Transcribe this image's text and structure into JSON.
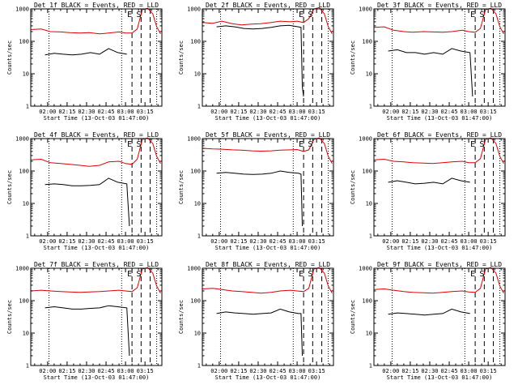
{
  "colors": {
    "background": "#ffffff",
    "axis": "#000000",
    "events": "#000000",
    "lld": "#dd0000"
  },
  "figure": {
    "rows": 3,
    "cols": 3
  },
  "chart_data": [
    {
      "type": "line",
      "panel": 1,
      "title": "Det 1f BLACK = Events, RED = LLD",
      "xlabel": "Start Time (13-Oct-03 01:47:00)",
      "ylabel": "Counts/sec",
      "y_scale": "log",
      "ylim": [
        1,
        1000
      ],
      "grid": false,
      "y_ticks": [
        "1",
        "10",
        "100",
        "1000"
      ],
      "x_ticks": [
        "02:00",
        "02:15",
        "02:30",
        "02:45",
        "03:00",
        "03:15"
      ],
      "xlim": [
        "01:47",
        "03:28"
      ],
      "dotted_vlines": [
        "02:01",
        "02:57",
        "03:24"
      ],
      "dashed_vlines": [
        "03:05",
        "03:12",
        "03:19"
      ],
      "flare_markers": [
        "E",
        "S"
      ],
      "series": [
        {
          "role": "events",
          "x": [
            "01:58",
            "02:05",
            "02:12",
            "02:19",
            "02:26",
            "02:33",
            "02:40",
            "02:47",
            "02:54",
            "03:01"
          ],
          "values": [
            38,
            43,
            40,
            38,
            40,
            45,
            40,
            60,
            45,
            40
          ]
        },
        {
          "role": "lld",
          "x": [
            "01:47",
            "01:55",
            "02:02",
            "02:10",
            "02:17",
            "02:25",
            "02:32",
            "02:40",
            "02:47",
            "02:55",
            "03:00",
            "03:05",
            "03:09",
            "03:13",
            "03:17",
            "03:21",
            "03:24",
            "03:27"
          ],
          "values": [
            230,
            240,
            200,
            195,
            185,
            180,
            185,
            170,
            180,
            195,
            180,
            180,
            240,
            950,
            1050,
            700,
            280,
            170
          ]
        }
      ]
    },
    {
      "type": "line",
      "panel": 2,
      "title": "Det 2f BLACK = Events, RED = LLD",
      "xlabel": "Start Time (13-Oct-03 01:47:00)",
      "ylabel": "Counts/sec",
      "y_scale": "log",
      "ylim": [
        1,
        1000
      ],
      "grid": false,
      "y_ticks": [
        "1",
        "10",
        "100",
        "1000"
      ],
      "x_ticks": [
        "02:00",
        "02:15",
        "02:30",
        "02:45",
        "03:00",
        "03:15"
      ],
      "xlim": [
        "01:47",
        "03:28"
      ],
      "dotted_vlines": [
        "02:01",
        "02:57",
        "03:24"
      ],
      "dashed_vlines": [
        "03:05",
        "03:12",
        "03:19"
      ],
      "flare_markers": [
        "E",
        "S"
      ],
      "series": [
        {
          "role": "events",
          "x": [
            "01:58",
            "02:05",
            "02:12",
            "02:19",
            "02:26",
            "02:33",
            "02:40",
            "02:47",
            "02:54",
            "03:01",
            "03:03",
            "03:04",
            "03:05"
          ],
          "values": [
            280,
            300,
            280,
            250,
            240,
            250,
            270,
            300,
            310,
            280,
            270,
            4,
            2
          ]
        },
        {
          "role": "lld",
          "x": [
            "01:47",
            "01:55",
            "02:02",
            "02:10",
            "02:17",
            "02:25",
            "02:32",
            "02:40",
            "02:47",
            "02:55",
            "03:00",
            "03:05",
            "03:09",
            "03:13",
            "03:17",
            "03:21",
            "03:24",
            "03:27"
          ],
          "values": [
            380,
            360,
            420,
            350,
            320,
            340,
            350,
            380,
            420,
            400,
            420,
            380,
            500,
            1000,
            1100,
            700,
            280,
            170
          ]
        }
      ]
    },
    {
      "type": "line",
      "panel": 3,
      "title": "Det 3f BLACK = Events, RED = LLD",
      "xlabel": "Start Time (13-Oct-03 01:47:00)",
      "ylabel": "Counts/sec",
      "y_scale": "log",
      "ylim": [
        1,
        1000
      ],
      "grid": false,
      "y_ticks": [
        "1",
        "10",
        "100",
        "1000"
      ],
      "x_ticks": [
        "02:00",
        "02:15",
        "02:30",
        "02:45",
        "03:00",
        "03:15"
      ],
      "xlim": [
        "01:47",
        "03:28"
      ],
      "dotted_vlines": [
        "02:01",
        "02:57",
        "03:24"
      ],
      "dashed_vlines": [
        "03:05",
        "03:12",
        "03:19"
      ],
      "flare_markers": [
        "E",
        "S"
      ],
      "series": [
        {
          "role": "events",
          "x": [
            "01:58",
            "02:05",
            "02:12",
            "02:19",
            "02:26",
            "02:33",
            "02:40",
            "02:47",
            "02:54",
            "03:01",
            "03:03"
          ],
          "values": [
            50,
            55,
            45,
            45,
            40,
            45,
            40,
            60,
            50,
            45,
            2
          ]
        },
        {
          "role": "lld",
          "x": [
            "01:47",
            "01:55",
            "02:02",
            "02:10",
            "02:17",
            "02:25",
            "02:32",
            "02:40",
            "02:47",
            "02:55",
            "03:00",
            "03:05",
            "03:09",
            "03:13",
            "03:17",
            "03:21",
            "03:24",
            "03:27"
          ],
          "values": [
            270,
            280,
            220,
            200,
            190,
            200,
            195,
            190,
            200,
            220,
            200,
            190,
            250,
            950,
            1050,
            700,
            280,
            170
          ]
        }
      ]
    },
    {
      "type": "line",
      "panel": 4,
      "title": "Det 4f BLACK = Events, RED = LLD",
      "xlabel": "Start Time (13-Oct-03 01:47:00)",
      "ylabel": "Counts/sec",
      "y_scale": "log",
      "ylim": [
        1,
        1000
      ],
      "grid": false,
      "y_ticks": [
        "1",
        "10",
        "100",
        "1000"
      ],
      "x_ticks": [
        "02:00",
        "02:15",
        "02:30",
        "02:45",
        "03:00",
        "03:15"
      ],
      "xlim": [
        "01:47",
        "03:28"
      ],
      "dotted_vlines": [
        "02:01",
        "02:57",
        "03:24"
      ],
      "dashed_vlines": [
        "03:05",
        "03:12",
        "03:19"
      ],
      "flare_markers": [
        "E",
        "S"
      ],
      "series": [
        {
          "role": "events",
          "x": [
            "01:58",
            "02:05",
            "02:12",
            "02:19",
            "02:26",
            "02:33",
            "02:40",
            "02:47",
            "02:54",
            "03:01",
            "03:03"
          ],
          "values": [
            38,
            40,
            38,
            35,
            35,
            36,
            38,
            60,
            45,
            40,
            2
          ]
        },
        {
          "role": "lld",
          "x": [
            "01:47",
            "01:55",
            "02:02",
            "02:10",
            "02:17",
            "02:25",
            "02:32",
            "02:40",
            "02:47",
            "02:55",
            "03:00",
            "03:05",
            "03:09",
            "03:13",
            "03:17",
            "03:21",
            "03:24",
            "03:27"
          ],
          "values": [
            220,
            230,
            180,
            170,
            160,
            150,
            140,
            150,
            190,
            200,
            170,
            160,
            230,
            950,
            1050,
            700,
            280,
            170
          ]
        }
      ]
    },
    {
      "type": "line",
      "panel": 5,
      "title": "Det 5f BLACK = Events, RED = LLD",
      "xlabel": "Start Time (13-Oct-03 01:47:00)",
      "ylabel": "Counts/sec",
      "y_scale": "log",
      "ylim": [
        1,
        1000
      ],
      "grid": false,
      "y_ticks": [
        "1",
        "10",
        "100",
        "1000"
      ],
      "x_ticks": [
        "02:00",
        "02:15",
        "02:30",
        "02:45",
        "03:00",
        "03:15"
      ],
      "xlim": [
        "01:47",
        "03:28"
      ],
      "dotted_vlines": [
        "02:01",
        "02:57",
        "03:24"
      ],
      "dashed_vlines": [
        "03:05",
        "03:12",
        "03:19"
      ],
      "flare_markers": [
        "E",
        "S"
      ],
      "series": [
        {
          "role": "events",
          "x": [
            "01:58",
            "02:05",
            "02:12",
            "02:19",
            "02:26",
            "02:33",
            "02:40",
            "02:47",
            "02:54",
            "03:01",
            "03:03",
            "03:04"
          ],
          "values": [
            85,
            90,
            85,
            80,
            78,
            80,
            85,
            100,
            90,
            85,
            80,
            2
          ]
        },
        {
          "role": "lld",
          "x": [
            "01:47",
            "01:55",
            "02:02",
            "02:10",
            "02:17",
            "02:25",
            "02:32",
            "02:40",
            "02:47",
            "02:55",
            "03:00",
            "03:05",
            "03:09",
            "03:13",
            "03:17",
            "03:21",
            "03:24",
            "03:27"
          ],
          "values": [
            500,
            480,
            470,
            450,
            440,
            420,
            410,
            420,
            440,
            450,
            460,
            400,
            450,
            950,
            1050,
            700,
            280,
            170
          ]
        }
      ]
    },
    {
      "type": "line",
      "panel": 6,
      "title": "Det 6f BLACK = Events, RED = LLD",
      "xlabel": "Start Time (13-Oct-03 01:47:00)",
      "ylabel": "Counts/sec",
      "y_scale": "log",
      "ylim": [
        1,
        1000
      ],
      "grid": false,
      "y_ticks": [
        "1",
        "10",
        "100",
        "1000"
      ],
      "x_ticks": [
        "02:00",
        "02:15",
        "02:30",
        "02:45",
        "03:00",
        "03:15"
      ],
      "xlim": [
        "01:47",
        "03:28"
      ],
      "dotted_vlines": [
        "02:01",
        "02:57",
        "03:24"
      ],
      "dashed_vlines": [
        "03:05",
        "03:12",
        "03:19"
      ],
      "flare_markers": [
        "E",
        "S"
      ],
      "series": [
        {
          "role": "events",
          "x": [
            "01:58",
            "02:05",
            "02:12",
            "02:19",
            "02:26",
            "02:33",
            "02:40",
            "02:47",
            "02:54",
            "03:01"
          ],
          "values": [
            45,
            50,
            45,
            40,
            42,
            45,
            40,
            60,
            50,
            45
          ]
        },
        {
          "role": "lld",
          "x": [
            "01:47",
            "01:55",
            "02:02",
            "02:10",
            "02:17",
            "02:25",
            "02:32",
            "02:40",
            "02:47",
            "02:55",
            "03:00",
            "03:05",
            "03:09",
            "03:13",
            "03:17",
            "03:21",
            "03:24",
            "03:27"
          ],
          "values": [
            220,
            230,
            200,
            190,
            180,
            175,
            170,
            180,
            190,
            200,
            180,
            180,
            240,
            950,
            1050,
            700,
            280,
            170
          ]
        }
      ]
    },
    {
      "type": "line",
      "panel": 7,
      "title": "Det 7f BLACK = Events, RED = LLD",
      "xlabel": "Start Time (13-Oct-03 01:47:00)",
      "ylabel": "Counts/sec",
      "y_scale": "log",
      "ylim": [
        1,
        1000
      ],
      "grid": false,
      "y_ticks": [
        "1",
        "10",
        "100",
        "1000"
      ],
      "x_ticks": [
        "02:00",
        "02:15",
        "02:30",
        "02:45",
        "03:00",
        "03:15"
      ],
      "xlim": [
        "01:47",
        "03:28"
      ],
      "dotted_vlines": [
        "02:01",
        "02:57",
        "03:24"
      ],
      "dashed_vlines": [
        "03:05",
        "03:12",
        "03:19"
      ],
      "flare_markers": [
        "E",
        "S"
      ],
      "series": [
        {
          "role": "events",
          "x": [
            "01:58",
            "02:05",
            "02:12",
            "02:19",
            "02:26",
            "02:33",
            "02:40",
            "02:47",
            "02:54",
            "03:01",
            "03:03"
          ],
          "values": [
            60,
            65,
            60,
            55,
            55,
            58,
            60,
            70,
            65,
            60,
            2
          ]
        },
        {
          "role": "lld",
          "x": [
            "01:47",
            "01:55",
            "02:02",
            "02:10",
            "02:17",
            "02:25",
            "02:32",
            "02:40",
            "02:47",
            "02:55",
            "03:00",
            "03:05",
            "03:09",
            "03:13",
            "03:17",
            "03:21",
            "03:24",
            "03:27"
          ],
          "values": [
            200,
            210,
            200,
            190,
            185,
            180,
            185,
            190,
            200,
            210,
            200,
            190,
            250,
            950,
            1050,
            700,
            280,
            170
          ]
        }
      ]
    },
    {
      "type": "line",
      "panel": 8,
      "title": "Det 8f BLACK = Events, RED = LLD",
      "xlabel": "Start Time (13-Oct-03 01:47:00)",
      "ylabel": "Counts/sec",
      "y_scale": "log",
      "ylim": [
        1,
        1000
      ],
      "grid": false,
      "y_ticks": [
        "1",
        "10",
        "100",
        "1000"
      ],
      "x_ticks": [
        "02:00",
        "02:15",
        "02:30",
        "02:45",
        "03:00",
        "03:15"
      ],
      "xlim": [
        "01:47",
        "03:28"
      ],
      "dotted_vlines": [
        "02:01",
        "02:57",
        "03:24"
      ],
      "dashed_vlines": [
        "03:05",
        "03:12",
        "03:19"
      ],
      "flare_markers": [
        "E",
        "S"
      ],
      "series": [
        {
          "role": "events",
          "x": [
            "01:58",
            "02:05",
            "02:12",
            "02:19",
            "02:26",
            "02:33",
            "02:40",
            "02:47",
            "02:54",
            "03:01",
            "03:03",
            "03:04"
          ],
          "values": [
            40,
            45,
            42,
            40,
            38,
            40,
            42,
            55,
            45,
            40,
            40,
            2
          ]
        },
        {
          "role": "lld",
          "x": [
            "01:47",
            "01:55",
            "02:02",
            "02:10",
            "02:17",
            "02:25",
            "02:32",
            "02:40",
            "02:47",
            "02:55",
            "03:00",
            "03:05",
            "03:09",
            "03:13",
            "03:17",
            "03:21",
            "03:24",
            "03:27"
          ],
          "values": [
            230,
            240,
            220,
            200,
            190,
            180,
            170,
            180,
            200,
            210,
            200,
            190,
            240,
            950,
            1050,
            700,
            280,
            170
          ]
        }
      ]
    },
    {
      "type": "line",
      "panel": 9,
      "title": "Det 9f BLACK = Events, RED = LLD",
      "xlabel": "Start Time (13-Oct-03 01:47:00)",
      "ylabel": "Counts/sec",
      "y_scale": "log",
      "ylim": [
        1,
        1000
      ],
      "grid": false,
      "y_ticks": [
        "1",
        "10",
        "100",
        "1000"
      ],
      "x_ticks": [
        "02:00",
        "02:15",
        "02:30",
        "02:45",
        "03:00",
        "03:15"
      ],
      "xlim": [
        "01:47",
        "03:28"
      ],
      "dotted_vlines": [
        "02:01",
        "02:57",
        "03:24"
      ],
      "dashed_vlines": [
        "03:05",
        "03:12",
        "03:19"
      ],
      "flare_markers": [
        "E",
        "S"
      ],
      "series": [
        {
          "role": "events",
          "x": [
            "01:58",
            "02:05",
            "02:12",
            "02:19",
            "02:26",
            "02:33",
            "02:40",
            "02:47",
            "02:54",
            "03:01"
          ],
          "values": [
            38,
            42,
            40,
            38,
            36,
            38,
            40,
            55,
            45,
            40
          ]
        },
        {
          "role": "lld",
          "x": [
            "01:47",
            "01:55",
            "02:02",
            "02:10",
            "02:17",
            "02:25",
            "02:32",
            "02:40",
            "02:47",
            "02:55",
            "03:00",
            "03:05",
            "03:09",
            "03:13",
            "03:17",
            "03:21",
            "03:24",
            "03:27"
          ],
          "values": [
            220,
            230,
            210,
            190,
            180,
            175,
            170,
            180,
            190,
            200,
            185,
            180,
            240,
            950,
            1050,
            700,
            280,
            170
          ]
        }
      ]
    }
  ]
}
